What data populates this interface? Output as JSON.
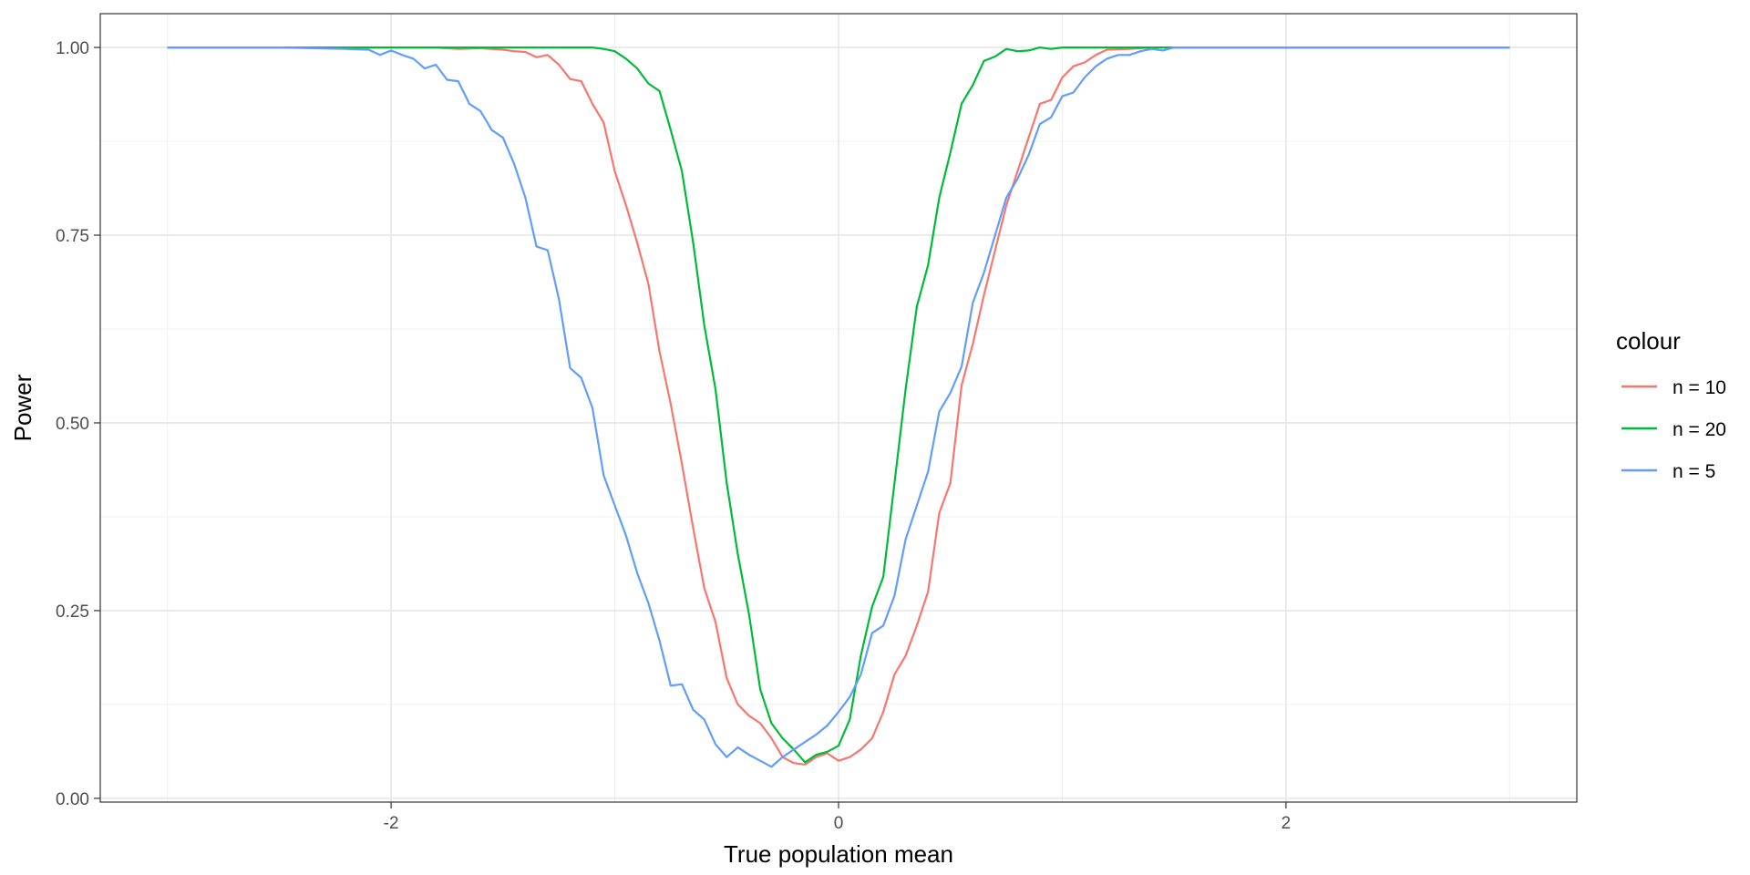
{
  "chart_data": {
    "type": "line",
    "xlabel": "True population mean",
    "ylabel": "Power",
    "xlim": [
      -3.3,
      3.3
    ],
    "ylim": [
      -0.005,
      1.045
    ],
    "x_ticks": [
      -2,
      0,
      2
    ],
    "x_tick_labels": [
      "-2",
      "0",
      "2"
    ],
    "y_ticks": [
      0,
      0.25,
      0.5,
      0.75,
      1.0
    ],
    "y_tick_labels": [
      "0.00",
      "0.25",
      "0.50",
      "0.75",
      "1.00"
    ],
    "grid": true,
    "legend_title": "colour",
    "legend_position": "right",
    "series": [
      {
        "name": "n = 10",
        "color": "#F8766D",
        "points": [
          [
            -3.0,
            1.0
          ],
          [
            -2.5,
            1.0
          ],
          [
            -2.0,
            1.0
          ],
          [
            -1.8,
            1.0
          ],
          [
            -1.7,
            0.998
          ],
          [
            -1.6,
            0.999
          ],
          [
            -1.5,
            0.997
          ],
          [
            -1.45,
            0.995
          ],
          [
            -1.4,
            0.994
          ],
          [
            -1.35,
            0.987
          ],
          [
            -1.3,
            0.99
          ],
          [
            -1.25,
            0.977
          ],
          [
            -1.2,
            0.958
          ],
          [
            -1.15,
            0.955
          ],
          [
            -1.1,
            0.925
          ],
          [
            -1.05,
            0.9
          ],
          [
            -1.0,
            0.835
          ],
          [
            -0.95,
            0.79
          ],
          [
            -0.9,
            0.74
          ],
          [
            -0.85,
            0.685
          ],
          [
            -0.8,
            0.595
          ],
          [
            -0.75,
            0.525
          ],
          [
            -0.7,
            0.445
          ],
          [
            -0.65,
            0.36
          ],
          [
            -0.6,
            0.28
          ],
          [
            -0.55,
            0.235
          ],
          [
            -0.5,
            0.16
          ],
          [
            -0.45,
            0.125
          ],
          [
            -0.4,
            0.11
          ],
          [
            -0.35,
            0.1
          ],
          [
            -0.3,
            0.08
          ],
          [
            -0.25,
            0.055
          ],
          [
            -0.2,
            0.047
          ],
          [
            -0.15,
            0.045
          ],
          [
            -0.1,
            0.055
          ],
          [
            -0.05,
            0.06
          ],
          [
            0.0,
            0.05
          ],
          [
            0.05,
            0.055
          ],
          [
            0.1,
            0.065
          ],
          [
            0.15,
            0.08
          ],
          [
            0.2,
            0.115
          ],
          [
            0.25,
            0.165
          ],
          [
            0.3,
            0.19
          ],
          [
            0.35,
            0.23
          ],
          [
            0.4,
            0.275
          ],
          [
            0.45,
            0.38
          ],
          [
            0.5,
            0.42
          ],
          [
            0.55,
            0.55
          ],
          [
            0.6,
            0.605
          ],
          [
            0.65,
            0.67
          ],
          [
            0.7,
            0.73
          ],
          [
            0.75,
            0.79
          ],
          [
            0.8,
            0.835
          ],
          [
            0.85,
            0.88
          ],
          [
            0.9,
            0.925
          ],
          [
            0.95,
            0.93
          ],
          [
            1.0,
            0.96
          ],
          [
            1.05,
            0.975
          ],
          [
            1.1,
            0.98
          ],
          [
            1.15,
            0.99
          ],
          [
            1.2,
            0.997
          ],
          [
            1.3,
            0.998
          ],
          [
            1.4,
            1.0
          ],
          [
            1.6,
            1.0
          ],
          [
            2.0,
            1.0
          ],
          [
            2.5,
            1.0
          ],
          [
            3.0,
            1.0
          ]
        ]
      },
      {
        "name": "n = 20",
        "color": "#00BA38",
        "points": [
          [
            -3.0,
            1.0
          ],
          [
            -2.0,
            1.0
          ],
          [
            -1.5,
            1.0
          ],
          [
            -1.2,
            1.0
          ],
          [
            -1.1,
            1.0
          ],
          [
            -1.05,
            0.998
          ],
          [
            -1.0,
            0.995
          ],
          [
            -0.95,
            0.985
          ],
          [
            -0.9,
            0.972
          ],
          [
            -0.85,
            0.952
          ],
          [
            -0.8,
            0.942
          ],
          [
            -0.75,
            0.89
          ],
          [
            -0.7,
            0.835
          ],
          [
            -0.65,
            0.74
          ],
          [
            -0.6,
            0.63
          ],
          [
            -0.55,
            0.545
          ],
          [
            -0.5,
            0.42
          ],
          [
            -0.45,
            0.325
          ],
          [
            -0.4,
            0.245
          ],
          [
            -0.35,
            0.145
          ],
          [
            -0.3,
            0.1
          ],
          [
            -0.25,
            0.08
          ],
          [
            -0.2,
            0.065
          ],
          [
            -0.15,
            0.048
          ],
          [
            -0.1,
            0.058
          ],
          [
            -0.05,
            0.062
          ],
          [
            0.0,
            0.07
          ],
          [
            0.05,
            0.105
          ],
          [
            0.1,
            0.19
          ],
          [
            0.15,
            0.255
          ],
          [
            0.2,
            0.295
          ],
          [
            0.25,
            0.42
          ],
          [
            0.3,
            0.545
          ],
          [
            0.35,
            0.655
          ],
          [
            0.4,
            0.71
          ],
          [
            0.45,
            0.8
          ],
          [
            0.5,
            0.86
          ],
          [
            0.55,
            0.925
          ],
          [
            0.6,
            0.95
          ],
          [
            0.65,
            0.982
          ],
          [
            0.7,
            0.988
          ],
          [
            0.75,
            0.998
          ],
          [
            0.8,
            0.995
          ],
          [
            0.85,
            0.996
          ],
          [
            0.9,
            1.0
          ],
          [
            0.95,
            0.998
          ],
          [
            1.0,
            1.0
          ],
          [
            1.5,
            1.0
          ],
          [
            2.0,
            1.0
          ],
          [
            2.5,
            1.0
          ],
          [
            3.0,
            1.0
          ]
        ]
      },
      {
        "name": "n = 5",
        "color": "#619CFF",
        "points": [
          [
            -3.0,
            1.0
          ],
          [
            -2.5,
            1.0
          ],
          [
            -2.2,
            0.998
          ],
          [
            -2.1,
            0.997
          ],
          [
            -2.05,
            0.99
          ],
          [
            -2.0,
            0.996
          ],
          [
            -1.95,
            0.99
          ],
          [
            -1.9,
            0.985
          ],
          [
            -1.85,
            0.972
          ],
          [
            -1.8,
            0.977
          ],
          [
            -1.75,
            0.957
          ],
          [
            -1.7,
            0.955
          ],
          [
            -1.65,
            0.925
          ],
          [
            -1.6,
            0.915
          ],
          [
            -1.55,
            0.89
          ],
          [
            -1.5,
            0.88
          ],
          [
            -1.45,
            0.845
          ],
          [
            -1.4,
            0.8
          ],
          [
            -1.35,
            0.735
          ],
          [
            -1.3,
            0.73
          ],
          [
            -1.25,
            0.665
          ],
          [
            -1.2,
            0.573
          ],
          [
            -1.15,
            0.56
          ],
          [
            -1.1,
            0.52
          ],
          [
            -1.05,
            0.43
          ],
          [
            -1.0,
            0.39
          ],
          [
            -0.95,
            0.35
          ],
          [
            -0.9,
            0.3
          ],
          [
            -0.85,
            0.26
          ],
          [
            -0.8,
            0.21
          ],
          [
            -0.75,
            0.15
          ],
          [
            -0.7,
            0.152
          ],
          [
            -0.65,
            0.118
          ],
          [
            -0.6,
            0.105
          ],
          [
            -0.55,
            0.072
          ],
          [
            -0.5,
            0.055
          ],
          [
            -0.45,
            0.068
          ],
          [
            -0.4,
            0.058
          ],
          [
            -0.35,
            0.05
          ],
          [
            -0.3,
            0.042
          ],
          [
            -0.25,
            0.055
          ],
          [
            -0.2,
            0.065
          ],
          [
            -0.15,
            0.075
          ],
          [
            -0.1,
            0.085
          ],
          [
            -0.05,
            0.097
          ],
          [
            0.0,
            0.115
          ],
          [
            0.05,
            0.135
          ],
          [
            0.1,
            0.165
          ],
          [
            0.15,
            0.22
          ],
          [
            0.2,
            0.23
          ],
          [
            0.25,
            0.27
          ],
          [
            0.3,
            0.345
          ],
          [
            0.35,
            0.39
          ],
          [
            0.4,
            0.435
          ],
          [
            0.45,
            0.515
          ],
          [
            0.5,
            0.54
          ],
          [
            0.55,
            0.575
          ],
          [
            0.6,
            0.66
          ],
          [
            0.65,
            0.7
          ],
          [
            0.7,
            0.75
          ],
          [
            0.75,
            0.8
          ],
          [
            0.8,
            0.825
          ],
          [
            0.85,
            0.857
          ],
          [
            0.9,
            0.898
          ],
          [
            0.95,
            0.907
          ],
          [
            1.0,
            0.935
          ],
          [
            1.05,
            0.94
          ],
          [
            1.1,
            0.96
          ],
          [
            1.15,
            0.975
          ],
          [
            1.2,
            0.985
          ],
          [
            1.25,
            0.99
          ],
          [
            1.3,
            0.99
          ],
          [
            1.35,
            0.995
          ],
          [
            1.4,
            0.998
          ],
          [
            1.45,
            0.996
          ],
          [
            1.5,
            1.0
          ],
          [
            2.0,
            1.0
          ],
          [
            2.5,
            1.0
          ],
          [
            3.0,
            1.0
          ]
        ]
      }
    ]
  }
}
